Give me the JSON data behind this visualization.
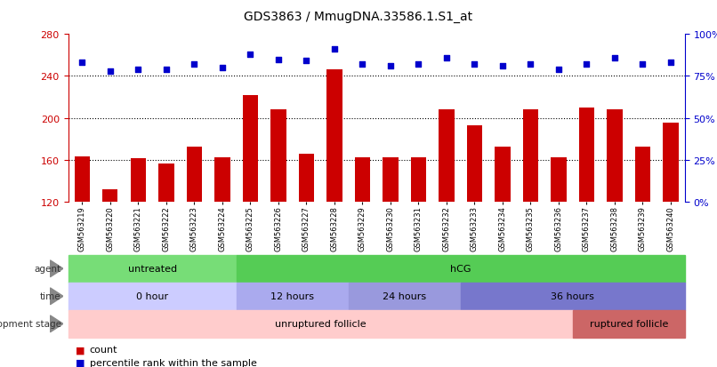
{
  "title": "GDS3863 / MmugDNA.33586.1.S1_at",
  "samples": [
    "GSM563219",
    "GSM563220",
    "GSM563221",
    "GSM563222",
    "GSM563223",
    "GSM563224",
    "GSM563225",
    "GSM563226",
    "GSM563227",
    "GSM563228",
    "GSM563229",
    "GSM563230",
    "GSM563231",
    "GSM563232",
    "GSM563233",
    "GSM563234",
    "GSM563235",
    "GSM563236",
    "GSM563237",
    "GSM563238",
    "GSM563239",
    "GSM563240"
  ],
  "counts": [
    163,
    132,
    161,
    156,
    172,
    162,
    222,
    208,
    166,
    246,
    162,
    162,
    162,
    208,
    193,
    172,
    208,
    162,
    210,
    208,
    172,
    195
  ],
  "percentiles": [
    83,
    78,
    79,
    79,
    82,
    80,
    88,
    85,
    84,
    91,
    82,
    81,
    82,
    86,
    82,
    81,
    82,
    79,
    82,
    86,
    82,
    83
  ],
  "ylim": [
    120,
    280
  ],
  "yticks": [
    120,
    160,
    200,
    240,
    280
  ],
  "right_yticks": [
    0,
    25,
    50,
    75,
    100
  ],
  "right_ylim": [
    0,
    100
  ],
  "bar_color": "#cc0000",
  "dot_color": "#0000cc",
  "agent_groups": [
    {
      "label": "untreated",
      "start": 0,
      "end": 6,
      "color": "#77dd77"
    },
    {
      "label": "hCG",
      "start": 6,
      "end": 22,
      "color": "#55cc55"
    }
  ],
  "time_groups": [
    {
      "label": "0 hour",
      "start": 0,
      "end": 6,
      "color": "#ccccff"
    },
    {
      "label": "12 hours",
      "start": 6,
      "end": 10,
      "color": "#aaaaee"
    },
    {
      "label": "24 hours",
      "start": 10,
      "end": 14,
      "color": "#9999dd"
    },
    {
      "label": "36 hours",
      "start": 14,
      "end": 22,
      "color": "#7777cc"
    }
  ],
  "dev_groups": [
    {
      "label": "unruptured follicle",
      "start": 0,
      "end": 18,
      "color": "#ffcccc"
    },
    {
      "label": "ruptured follicle",
      "start": 18,
      "end": 22,
      "color": "#cc6666"
    }
  ],
  "hline_values": [
    160,
    200,
    240
  ],
  "background_color": "#ffffff",
  "left_ylabel_color": "#cc0000",
  "right_ylabel_color": "#0000cc",
  "row_labels": [
    "agent",
    "time",
    "development stage"
  ]
}
